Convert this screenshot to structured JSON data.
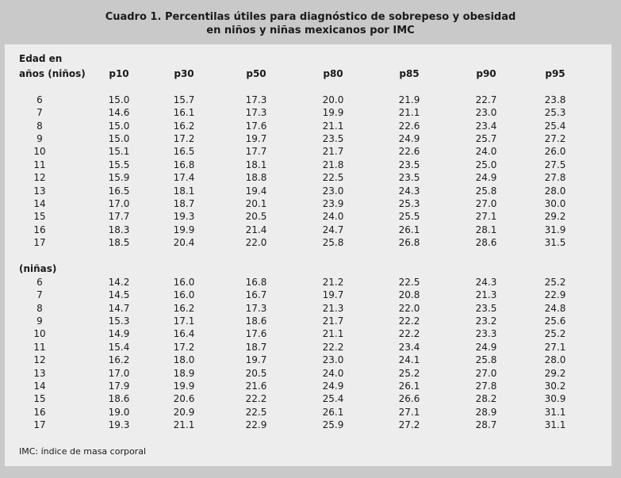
{
  "title": [
    "Cuadro 1. Percentilas útiles para diagnóstico de sobrepeso y obesidad",
    "en niños y niñas mexicanos por IMC"
  ],
  "header": {
    "age_label": [
      "Edad en",
      "años (niños)"
    ],
    "columns": [
      "p10",
      "p30",
      "p50",
      "p80",
      "p85",
      "p90",
      "p95"
    ]
  },
  "sections": [
    {
      "rows": [
        [
          "6",
          "15.0",
          "15.7",
          "17.3",
          "20.0",
          "21.9",
          "22.7",
          "23.8"
        ],
        [
          "7",
          "14.6",
          "16.1",
          "17.3",
          "19.9",
          "21.1",
          "23.0",
          "25.3"
        ],
        [
          "8",
          "15.0",
          "16.2",
          "17.6",
          "21.1",
          "22.6",
          "23.4",
          "25.4"
        ],
        [
          "9",
          "15.0",
          "17.2",
          "19.7",
          "23.5",
          "24.9",
          "25.7",
          "27.2"
        ],
        [
          "10",
          "15.1",
          "16.5",
          "17.7",
          "21.7",
          "22.6",
          "24.0",
          "26.0"
        ],
        [
          "11",
          "15.5",
          "16.8",
          "18.1",
          "21.8",
          "23.5",
          "25.0",
          "27.5"
        ],
        [
          "12",
          "15.9",
          "17.4",
          "18.8",
          "22.5",
          "23.5",
          "24.9",
          "27.8"
        ],
        [
          "13",
          "16.5",
          "18.1",
          "19.4",
          "23.0",
          "24.3",
          "25.8",
          "28.0"
        ],
        [
          "14",
          "17.0",
          "18.7",
          "20.1",
          "23.9",
          "25.3",
          "27.0",
          "30.0"
        ],
        [
          "15",
          "17.7",
          "19.3",
          "20.5",
          "24.0",
          "25.5",
          "27.1",
          "29.2"
        ],
        [
          "16",
          "18.3",
          "19.9",
          "21.4",
          "24.7",
          "26.1",
          "28.1",
          "31.9"
        ],
        [
          "17",
          "18.5",
          "20.4",
          "22.0",
          "25.8",
          "26.8",
          "28.6",
          "31.5"
        ]
      ]
    },
    {
      "label": "(niñas)",
      "rows": [
        [
          "6",
          "14.2",
          "16.0",
          "16.8",
          "21.2",
          "22.5",
          "24.3",
          "25.2"
        ],
        [
          "7",
          "14.5",
          "16.0",
          "16.7",
          "19.7",
          "20.8",
          "21.3",
          "22.9"
        ],
        [
          "8",
          "14.7",
          "16.2",
          "17.3",
          "21.3",
          "22.0",
          "23.5",
          "24.8"
        ],
        [
          "9",
          "15.3",
          "17.1",
          "18.6",
          "21.7",
          "22.2",
          "23.2",
          "25.6"
        ],
        [
          "10",
          "14.9",
          "16.4",
          "17.6",
          "21.1",
          "22.2",
          "23.3",
          "25.2"
        ],
        [
          "11",
          "15.4",
          "17.2",
          "18.7",
          "22.2",
          "23.4",
          "24.9",
          "27.1"
        ],
        [
          "12",
          "16.2",
          "18.0",
          "19.7",
          "23.0",
          "24.1",
          "25.8",
          "28.0"
        ],
        [
          "13",
          "17.0",
          "18.9",
          "20.5",
          "24.0",
          "25.2",
          "27.0",
          "29.2"
        ],
        [
          "14",
          "17.9",
          "19.9",
          "21.6",
          "24.9",
          "26.1",
          "27.8",
          "30.2"
        ],
        [
          "15",
          "18.6",
          "20.6",
          "22.2",
          "25.4",
          "26.6",
          "28.2",
          "30.9"
        ],
        [
          "16",
          "19.0",
          "20.9",
          "22.5",
          "26.1",
          "27.1",
          "28.9",
          "31.1"
        ],
        [
          "17",
          "19.3",
          "21.1",
          "22.9",
          "25.9",
          "27.2",
          "28.7",
          "31.1"
        ]
      ]
    }
  ],
  "footnote": "IMC: índice de masa corporal"
}
